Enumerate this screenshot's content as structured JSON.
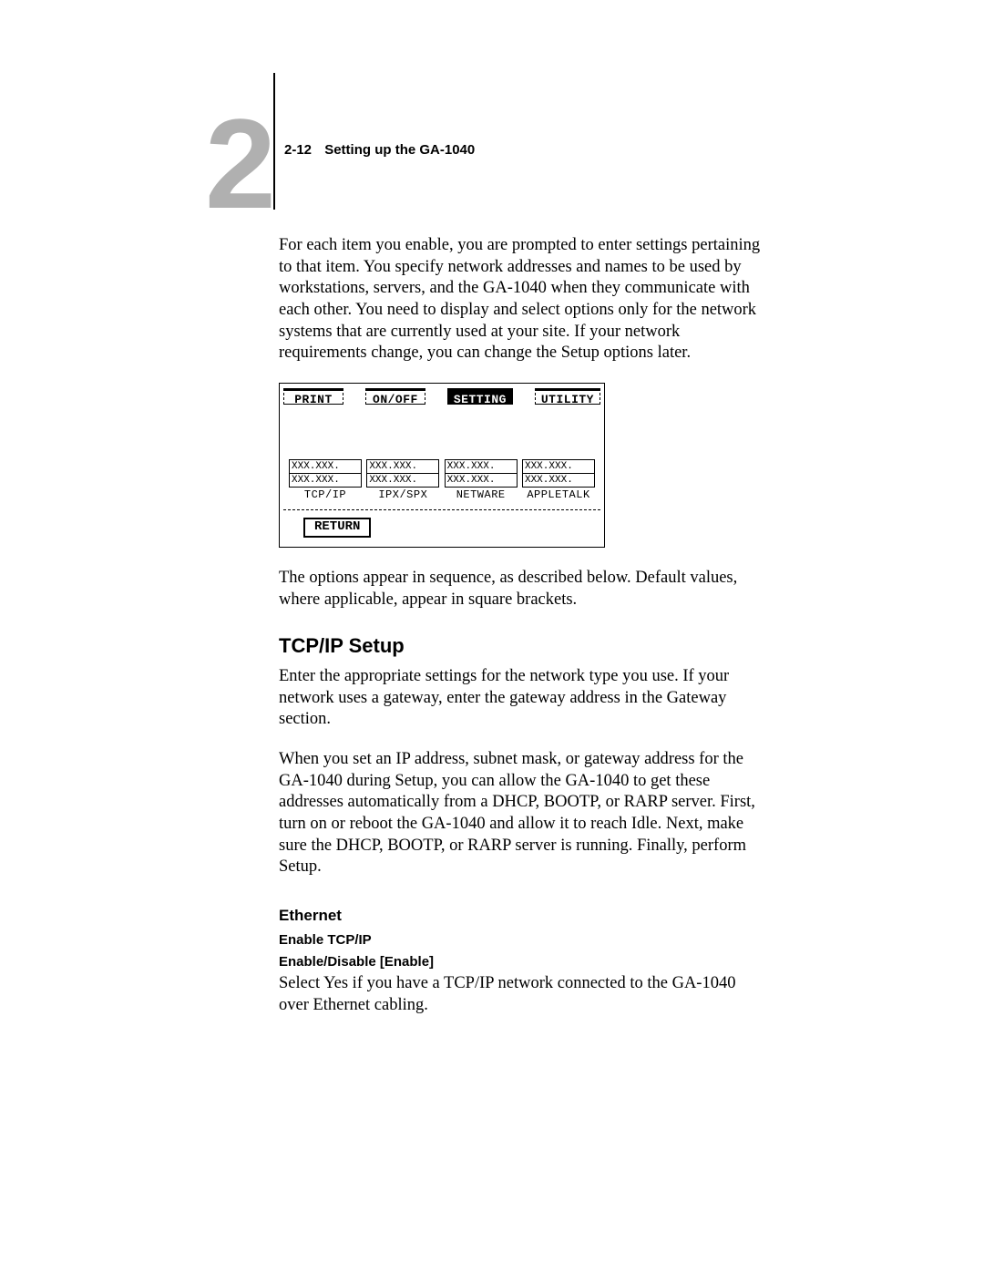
{
  "header": {
    "chapter_number": "2",
    "page_ref": "2-12",
    "section_title": "Setting up the GA-1040"
  },
  "intro_paragraph": "For each item you enable, you are prompted to enter settings pertaining to that item. You specify network addresses and names to be used by workstations, servers, and the GA-1040 when they communicate with each other. You need to display and select options only for the network systems that are currently used at your site. If your network requirements change, you can change the Setup options later.",
  "panel": {
    "tabs": [
      "PRINT",
      "ON/OFF",
      "SETTING",
      "UTILITY"
    ],
    "active_tab_index": 2,
    "columns": [
      {
        "rows": [
          "XXX.XXX.",
          "XXX.XXX."
        ],
        "label": "TCP/IP"
      },
      {
        "rows": [
          "XXX.XXX.",
          "XXX.XXX."
        ],
        "label": "IPX/SPX"
      },
      {
        "rows": [
          "XXX.XXX.",
          "XXX.XXX."
        ],
        "label": "NETWARE"
      },
      {
        "rows": [
          "XXX.XXX.",
          "XXX.XXX."
        ],
        "label": "APPLETALK"
      }
    ],
    "return_label": "RETURN"
  },
  "after_panel": "The options appear in sequence, as described below. Default values, where applicable, appear in square brackets.",
  "tcpip": {
    "heading": "TCP/IP Setup",
    "para1": "Enter the appropriate settings for the network type you use. If your network uses a gateway, enter the gateway address in the Gateway section.",
    "para2": "When you set an IP address, subnet mask, or gateway address for the GA-1040 during Setup, you can allow the GA-1040 to get these addresses automatically from a DHCP, BOOTP, or RARP server. First, turn on or reboot the GA-1040 and allow it to reach Idle. Next, make sure the DHCP, BOOTP, or RARP server is running. Finally, perform Setup."
  },
  "ethernet": {
    "heading": "Ethernet",
    "setting_name": "Enable TCP/IP",
    "setting_values": "Enable/Disable [Enable]",
    "description": "Select Yes if you have a TCP/IP network connected to the GA-1040 over Ethernet cabling."
  }
}
